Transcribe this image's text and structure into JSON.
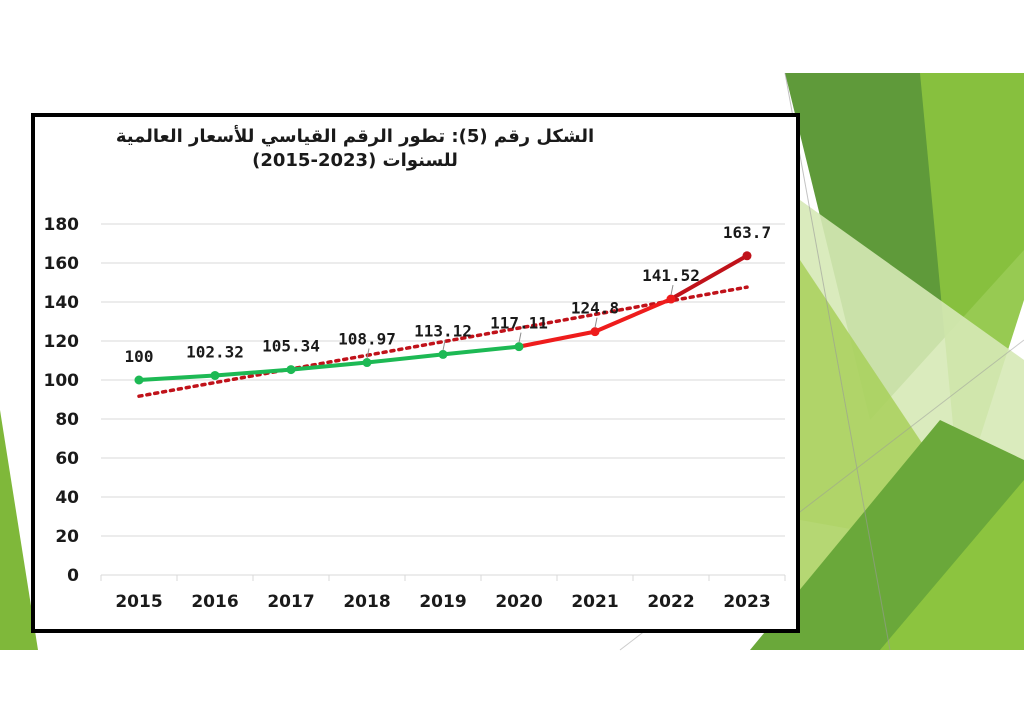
{
  "chart_data": {
    "type": "line",
    "title_line1": "الشكل رقم (5): تطور الرقم القياسي للأسعار العالمية",
    "title_line2": "للسنوات (2023-2015)",
    "categories": [
      "2015",
      "2016",
      "2017",
      "2018",
      "2019",
      "2020",
      "2021",
      "2022",
      "2023"
    ],
    "values": [
      100,
      102.32,
      105.34,
      108.97,
      113.12,
      117.11,
      124.8,
      141.52,
      163.7
    ],
    "value_labels": [
      "100",
      "102.32",
      "105.34",
      "108.97",
      "113.12",
      "117.11",
      "124.8",
      "141.52",
      "163.7"
    ],
    "ylim": [
      0,
      180
    ],
    "yticks": [
      0,
      20,
      40,
      60,
      80,
      100,
      120,
      140,
      160,
      180
    ],
    "grid": true,
    "legend": "none",
    "segment_colors": [
      "#1db954",
      "#1db954",
      "#1db954",
      "#1db954",
      "#1db954",
      "#ee1c1c",
      "#ee1c1c",
      "#c0121a"
    ],
    "point_colors": [
      "#1db954",
      "#1db954",
      "#1db954",
      "#1db954",
      "#1db954",
      "#1db954",
      "#ee1c1c",
      "#ee1c1c",
      "#c0121a"
    ],
    "trendline": {
      "type": "linear",
      "color": "#c0121a",
      "style": "dotted"
    }
  },
  "colors": {
    "border": "#000000",
    "grid": "#d9d9d9",
    "green_dark": "#5f9a3a",
    "green_mid": "#7fb83a",
    "green_light": "#a8d05a",
    "green_pale": "#d6e9b6"
  }
}
